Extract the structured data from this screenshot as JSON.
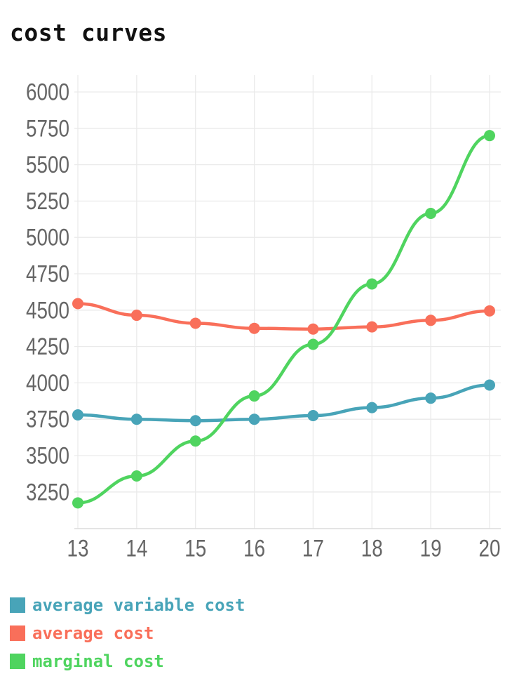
{
  "chart_data": {
    "type": "line",
    "title": "cost curves",
    "x": [
      13,
      14,
      15,
      16,
      17,
      18,
      19,
      20
    ],
    "x_tick_labels": [
      "13",
      "14",
      "15",
      "16",
      "17",
      "18",
      "19",
      "20"
    ],
    "yticks": [
      3250,
      3500,
      3750,
      4000,
      4250,
      4500,
      4750,
      5000,
      5250,
      5500,
      5750,
      6000
    ],
    "ylim": [
      3000,
      6000
    ],
    "grid": true,
    "legend_position": "bottom-left",
    "series": [
      {
        "name": "average variable cost",
        "color": "#48A4B8",
        "values": [
          3780,
          3750,
          3740,
          3750,
          3775,
          3830,
          3895,
          3985
        ]
      },
      {
        "name": "average cost",
        "color": "#F96F5A",
        "values": [
          4545,
          4465,
          4410,
          4375,
          4370,
          4385,
          4430,
          4495
        ]
      },
      {
        "name": "marginal cost",
        "color": "#4FD45F",
        "values": [
          3175,
          3360,
          3600,
          3910,
          4265,
          4680,
          5165,
          5700
        ]
      }
    ]
  }
}
